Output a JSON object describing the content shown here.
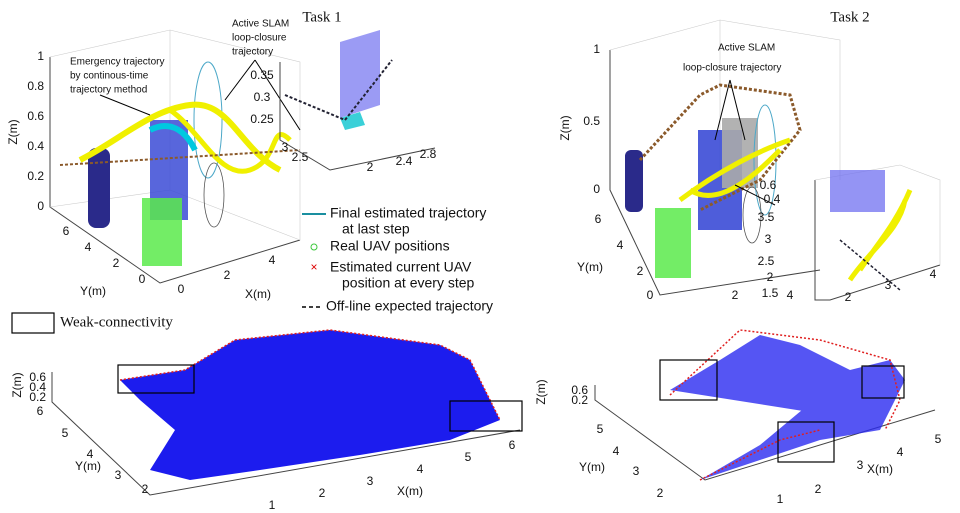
{
  "panels": [
    {
      "title": "Task 1",
      "zlabel": "Z(m)",
      "ylabel": "Y(m)",
      "xlabel": "X(m)",
      "zticks": [
        "0",
        "0.2",
        "0.4",
        "0.6",
        "0.8",
        "1"
      ],
      "yticks": [
        "0",
        "2",
        "4",
        "6"
      ],
      "xticks": [
        "0",
        "2",
        "4"
      ],
      "annotations": [
        [
          "Emergency trajectory",
          "by continous-time",
          "trajectory method"
        ],
        [
          "Active SLAM",
          "loop-closure",
          "trajectory"
        ]
      ],
      "inset_ticks": [
        "0.35",
        "0.3",
        "0.25",
        "3",
        "2.5",
        "2",
        "2.4",
        "2.8"
      ]
    },
    {
      "title": "Task 2",
      "zlabel": "Z(m)",
      "ylabel": "Y(m)",
      "zticks": [
        "0",
        "0.5",
        "1"
      ],
      "yticks": [
        "0",
        "2",
        "4",
        "6"
      ],
      "xticks": [
        "2",
        "4"
      ],
      "annotations": [
        [
          "Active SLAM",
          "loop-closure trajectory"
        ]
      ],
      "inset_ticks": [
        "0.6",
        "0.4",
        "3.5",
        "3",
        "2.5",
        "2",
        "1.5",
        "2",
        "3",
        "4"
      ]
    },
    {
      "zlabel": "Z(m)",
      "ylabel": "Y(m)",
      "xlabel": "X(m)",
      "zticks": [
        "0.2",
        "0.4",
        "0.6"
      ],
      "yticks": [
        "2",
        "3",
        "4",
        "5",
        "6"
      ],
      "xticks": [
        "1",
        "2",
        "3",
        "4",
        "5",
        "6"
      ]
    },
    {
      "zlabel": "Z(m)",
      "ylabel": "Y(m)",
      "xlabel": "X(m)",
      "zticks": [
        "0.2",
        "0.6"
      ],
      "yticks": [
        "2",
        "3",
        "4",
        "5"
      ],
      "xticks": [
        "1",
        "2",
        "3",
        "4",
        "5"
      ]
    }
  ],
  "legend": [
    [
      "Final estimated trajectory",
      "at last step"
    ],
    [
      "Real UAV positions"
    ],
    [
      "Estimated current UAV",
      "position at every step"
    ],
    [
      "Off-line expected trajectory"
    ]
  ],
  "weak_connectivity": "Weak-connectivity"
}
